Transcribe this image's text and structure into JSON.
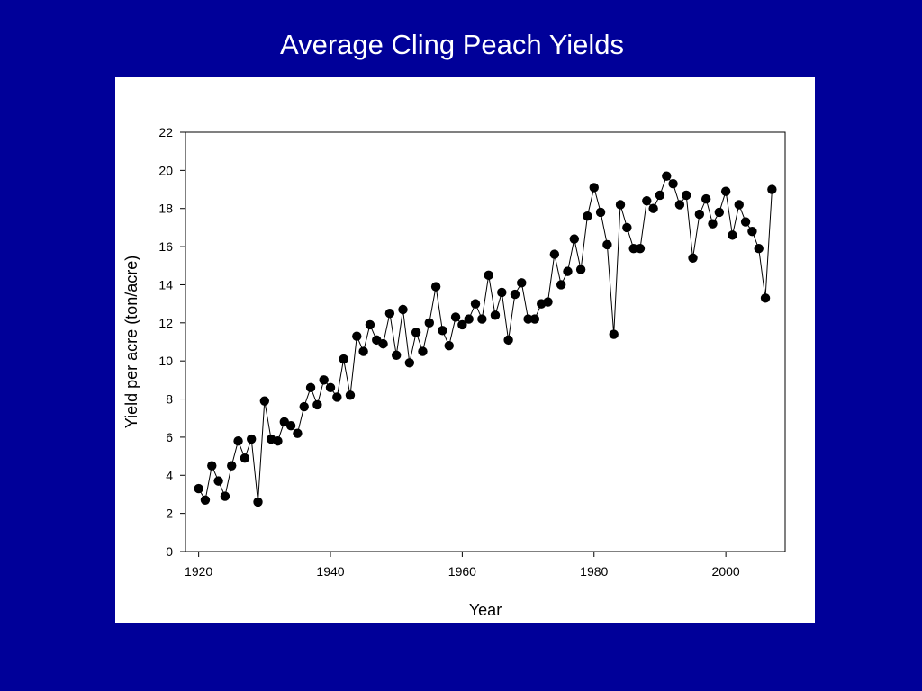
{
  "slide": {
    "title": "Average Cling Peach Yields",
    "background": "#000099"
  },
  "chart_data": {
    "type": "line",
    "title": "",
    "xlabel": "Year",
    "ylabel": "Yield per acre (ton/acre)",
    "xlim": [
      1918,
      2009
    ],
    "ylim": [
      0,
      22
    ],
    "xticks": [
      1920,
      1940,
      1960,
      1980,
      2000
    ],
    "yticks": [
      0,
      2,
      4,
      6,
      8,
      10,
      12,
      14,
      16,
      18,
      20,
      22
    ],
    "grid": false,
    "legend": "none",
    "series": [
      {
        "markers": "filled-circle",
        "color": "#000000",
        "x": [
          1920,
          1921,
          1922,
          1923,
          1924,
          1925,
          1926,
          1927,
          1928,
          1929,
          1930,
          1931,
          1932,
          1933,
          1934,
          1935,
          1936,
          1937,
          1938,
          1939,
          1940,
          1941,
          1942,
          1943,
          1944,
          1945,
          1946,
          1947,
          1948,
          1949,
          1950,
          1951,
          1952,
          1953,
          1954,
          1955,
          1956,
          1957,
          1958,
          1959,
          1960,
          1961,
          1962,
          1963,
          1964,
          1965,
          1966,
          1967,
          1968,
          1969,
          1970,
          1971,
          1972,
          1973,
          1974,
          1975,
          1976,
          1977,
          1978,
          1979,
          1980,
          1981,
          1982,
          1983,
          1984,
          1985,
          1986,
          1987,
          1988,
          1989,
          1990,
          1991,
          1992,
          1993,
          1994,
          1995,
          1996,
          1997,
          1998,
          1999,
          2000,
          2001,
          2002,
          2003,
          2004,
          2005,
          2006,
          2007
        ],
        "y": [
          3.3,
          2.7,
          4.5,
          3.7,
          2.9,
          4.5,
          5.8,
          4.9,
          5.9,
          2.6,
          7.9,
          5.9,
          5.8,
          6.8,
          6.6,
          6.2,
          7.6,
          8.6,
          7.7,
          9.0,
          8.6,
          8.1,
          10.1,
          8.2,
          11.3,
          10.5,
          11.9,
          11.1,
          10.9,
          12.5,
          10.3,
          12.7,
          9.9,
          11.5,
          10.5,
          12.0,
          13.9,
          11.6,
          10.8,
          12.3,
          11.9,
          12.2,
          13.0,
          12.2,
          14.5,
          12.4,
          13.6,
          11.1,
          13.5,
          14.1,
          12.2,
          12.2,
          13.0,
          13.1,
          15.6,
          14.0,
          14.7,
          16.4,
          14.8,
          17.6,
          19.1,
          17.8,
          16.1,
          11.4,
          18.2,
          17.0,
          15.9,
          15.9,
          18.4,
          18.0,
          18.7,
          19.7,
          19.3,
          18.2,
          18.7,
          15.4,
          17.7,
          18.5,
          17.2,
          17.8,
          18.9,
          16.6,
          18.2,
          17.3,
          16.8,
          15.9,
          13.3,
          19.0
        ]
      }
    ]
  }
}
